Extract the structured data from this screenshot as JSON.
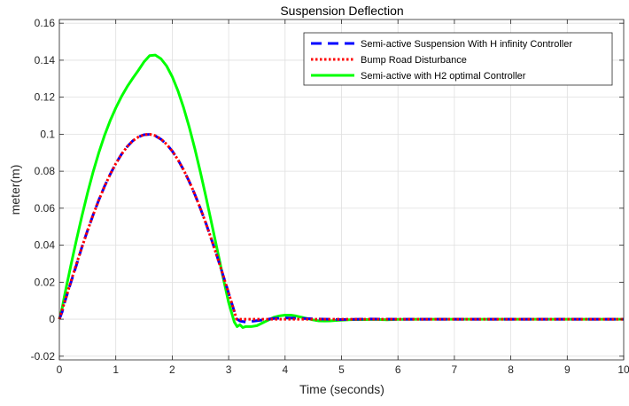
{
  "chart_data": {
    "type": "line",
    "title": "Suspension Deflection",
    "xlabel": "Time (seconds)",
    "ylabel": "meter(m)",
    "xlim": [
      0,
      10
    ],
    "ylim": [
      -0.022,
      0.162
    ],
    "xticks": [
      "0",
      "1",
      "2",
      "3",
      "4",
      "5",
      "6",
      "7",
      "8",
      "9",
      "10"
    ],
    "yticks": [
      "-0.02",
      "0",
      "0.02",
      "0.04",
      "0.06",
      "0.08",
      "0.1",
      "0.12",
      "0.14",
      "0.16"
    ],
    "grid": true,
    "legend_position": "top-right",
    "series": [
      {
        "name": "Semi-active Suspension With H infinity Controller",
        "color": "#0000ff",
        "style": "dashed",
        "x": [
          0,
          0.05,
          0.1,
          0.2,
          0.3,
          0.4,
          0.5,
          0.6,
          0.7,
          0.8,
          0.9,
          1.0,
          1.1,
          1.2,
          1.3,
          1.4,
          1.5,
          1.6,
          1.7,
          1.8,
          1.9,
          2.0,
          2.1,
          2.2,
          2.3,
          2.4,
          2.5,
          2.6,
          2.7,
          2.8,
          2.9,
          3.0,
          3.1,
          3.14,
          3.2,
          3.3,
          3.4,
          3.6,
          3.8,
          4.0,
          4.2,
          4.5,
          5.0,
          5.5,
          6.0,
          7.0,
          8.0,
          9.0,
          10.0
        ],
        "y": [
          0,
          0.004,
          0.0097,
          0.0195,
          0.029,
          0.039,
          0.048,
          0.0565,
          0.0645,
          0.0718,
          0.0783,
          0.0841,
          0.0891,
          0.0932,
          0.0964,
          0.0985,
          0.0997,
          0.0999,
          0.0991,
          0.0973,
          0.0946,
          0.0909,
          0.0863,
          0.0808,
          0.0745,
          0.0675,
          0.0598,
          0.0516,
          0.0427,
          0.0335,
          0.0239,
          0.0141,
          0.0042,
          0.0002,
          -0.001,
          -0.0015,
          -0.0012,
          -0.0004,
          0.0004,
          0.0007,
          0.0005,
          0.0002,
          -0.0002,
          0.0001,
          0,
          0,
          0,
          0,
          0
        ]
      },
      {
        "name": "Bump Road Disturbance",
        "color": "#ff0000",
        "style": "dotted",
        "x": [
          0,
          0.1,
          0.2,
          0.3,
          0.4,
          0.5,
          0.6,
          0.7,
          0.8,
          0.9,
          1.0,
          1.1,
          1.2,
          1.3,
          1.4,
          1.5,
          1.6,
          1.7,
          1.8,
          1.9,
          2.0,
          2.1,
          2.2,
          2.3,
          2.4,
          2.5,
          2.6,
          2.7,
          2.8,
          2.9,
          3.0,
          3.1,
          3.14,
          3.2,
          4.0,
          5.0,
          6.0,
          7.0,
          8.0,
          9.0,
          10.0
        ],
        "y": [
          0,
          0.01,
          0.0199,
          0.0296,
          0.0389,
          0.0479,
          0.0565,
          0.0644,
          0.0717,
          0.0783,
          0.0841,
          0.0891,
          0.0932,
          0.0964,
          0.0985,
          0.0997,
          0.1,
          0.0992,
          0.0974,
          0.0946,
          0.0909,
          0.0863,
          0.0808,
          0.0746,
          0.0675,
          0.0598,
          0.0516,
          0.0427,
          0.0335,
          0.0239,
          0.0141,
          0.0042,
          0,
          0,
          0,
          0,
          0,
          0,
          0,
          0,
          0
        ]
      },
      {
        "name": "Semi-active with H2 optimal Controller",
        "color": "#00ff00",
        "style": "solid",
        "x": [
          0,
          0.05,
          0.1,
          0.2,
          0.3,
          0.4,
          0.5,
          0.6,
          0.7,
          0.8,
          0.9,
          1.0,
          1.1,
          1.2,
          1.3,
          1.4,
          1.5,
          1.6,
          1.7,
          1.8,
          1.9,
          2.0,
          2.1,
          2.2,
          2.3,
          2.4,
          2.5,
          2.6,
          2.7,
          2.8,
          2.9,
          3.0,
          3.1,
          3.15,
          3.2,
          3.25,
          3.3,
          3.4,
          3.5,
          3.6,
          3.7,
          3.8,
          3.9,
          4.0,
          4.1,
          4.2,
          4.3,
          4.4,
          4.5,
          4.6,
          4.7,
          4.8,
          4.9,
          5.0,
          5.2,
          5.4,
          5.6,
          5.8,
          6.0,
          6.5,
          7.0,
          8.0,
          9.0,
          10.0
        ],
        "y": [
          0,
          0.006,
          0.014,
          0.0285,
          0.0425,
          0.0558,
          0.0683,
          0.0798,
          0.0901,
          0.0993,
          0.1073,
          0.1142,
          0.1203,
          0.1256,
          0.1302,
          0.1345,
          0.1391,
          0.1425,
          0.1428,
          0.1408,
          0.1369,
          0.1311,
          0.1236,
          0.1145,
          0.104,
          0.0922,
          0.0794,
          0.0658,
          0.0516,
          0.0372,
          0.0228,
          0.009,
          -0.0015,
          -0.004,
          -0.003,
          -0.0045,
          -0.004,
          -0.004,
          -0.0035,
          -0.002,
          -0.0005,
          0.001,
          0.0018,
          0.0022,
          0.0022,
          0.0017,
          0.001,
          0.0003,
          -0.0004,
          -0.0009,
          -0.001,
          -0.0009,
          -0.0007,
          -0.0005,
          -0.0002,
          -0.0002,
          -0.0001,
          -0.0003,
          -0.0001,
          0,
          0,
          0,
          0,
          0
        ]
      }
    ]
  }
}
